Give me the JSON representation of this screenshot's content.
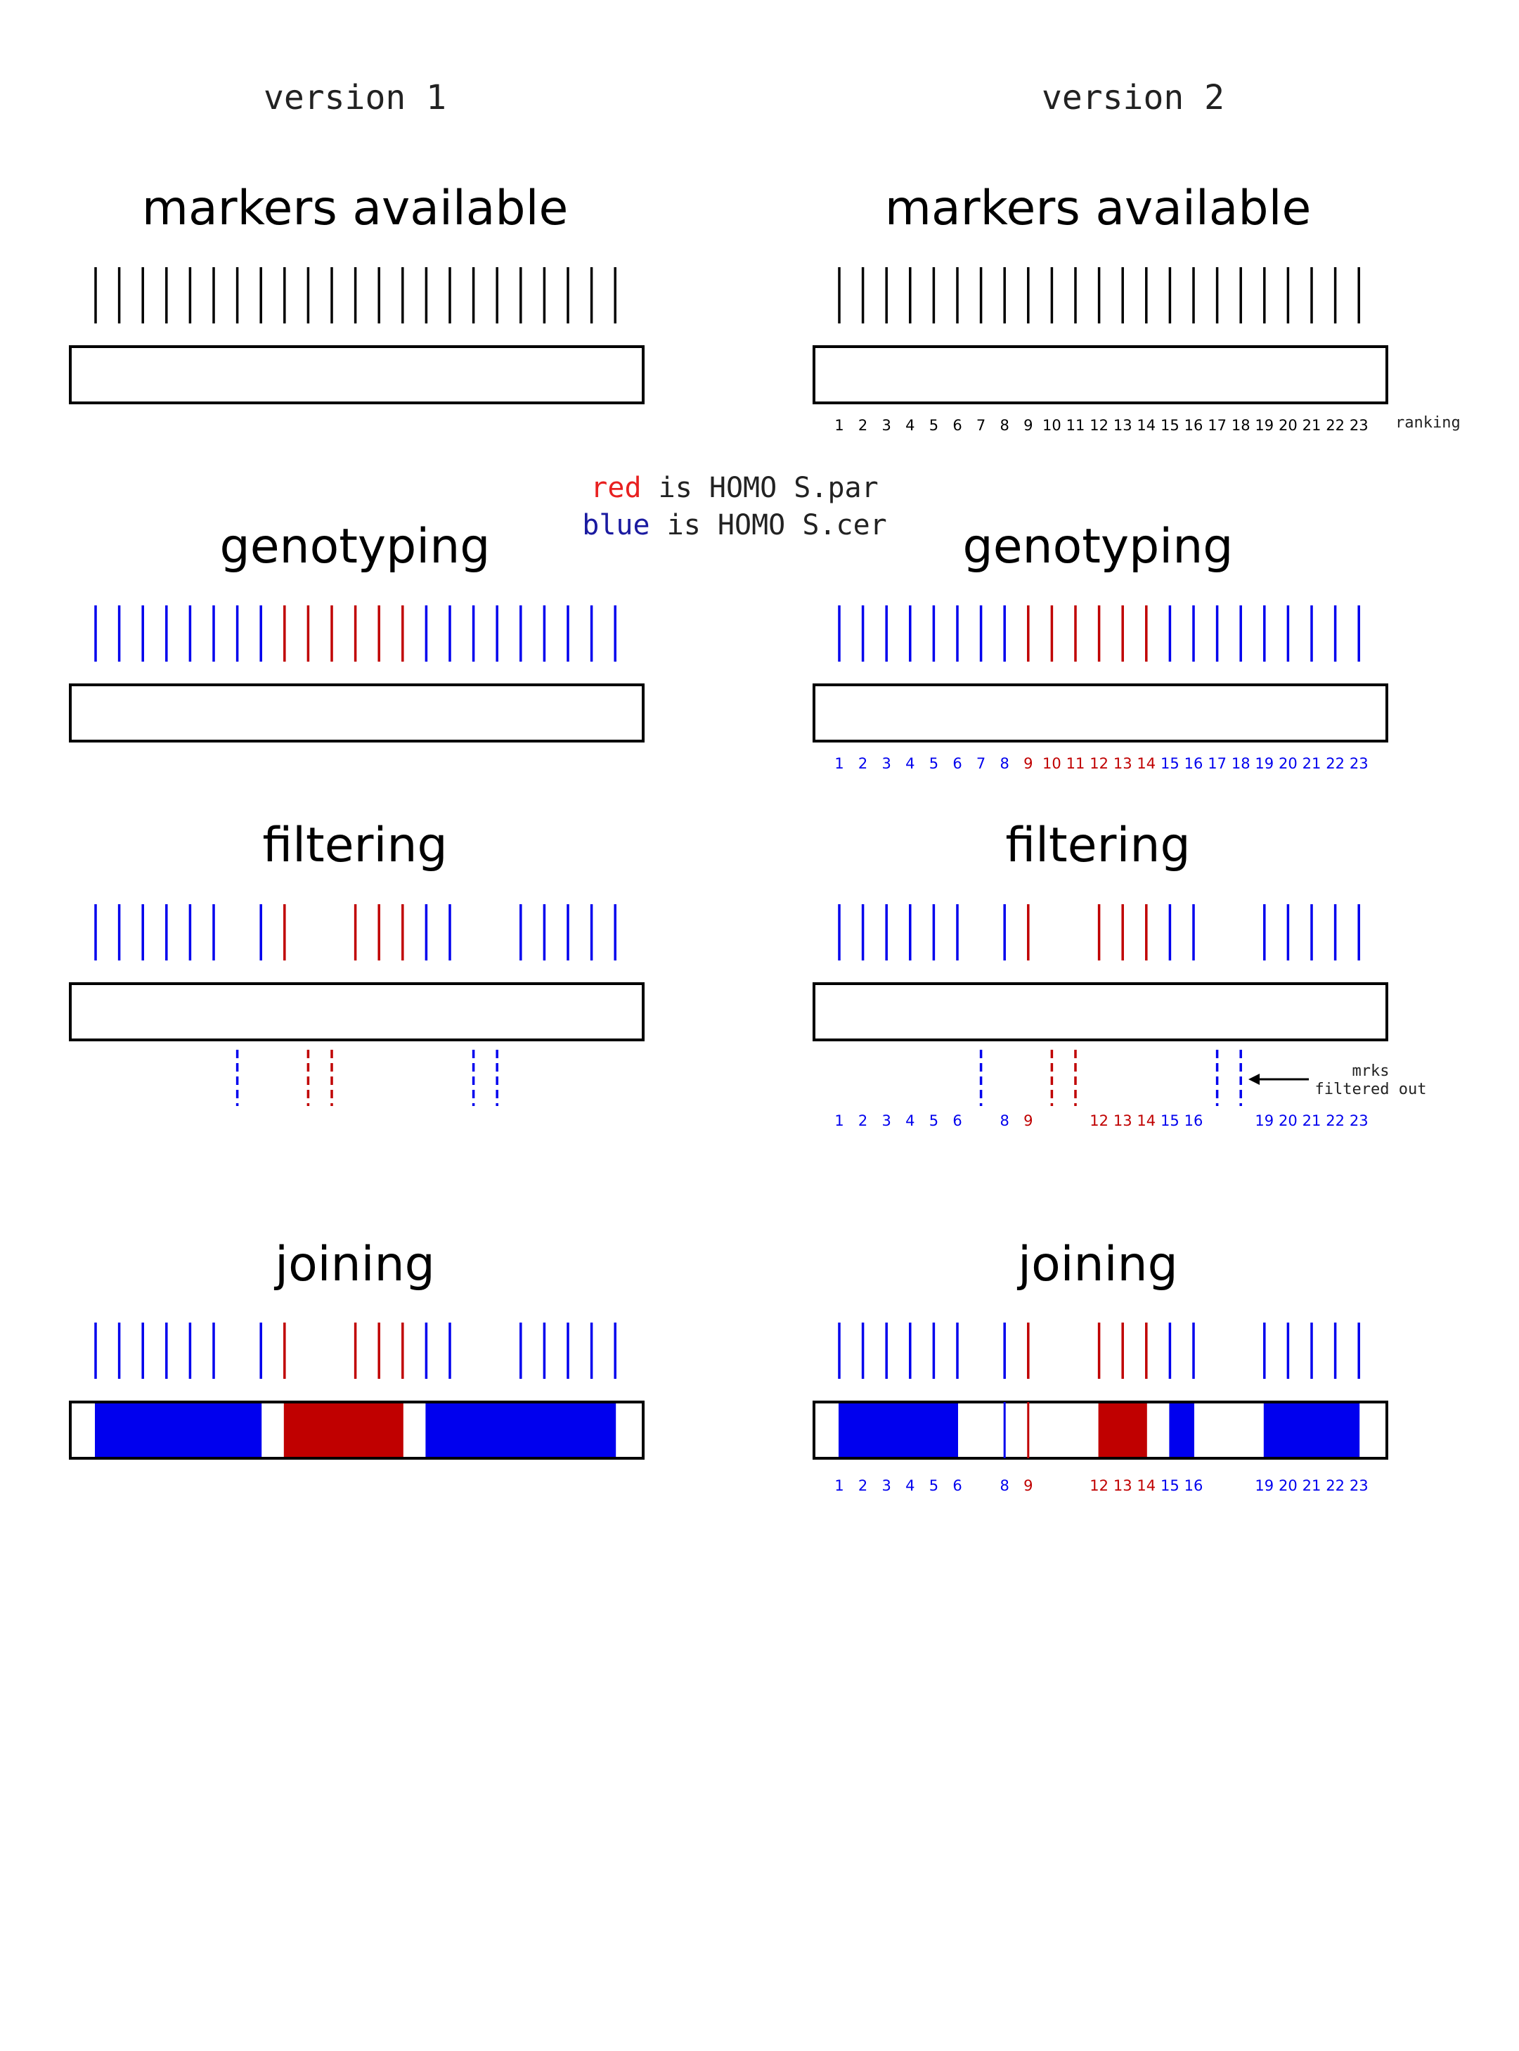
{
  "columns": [
    {
      "title": "version 1"
    },
    {
      "title": "version 2"
    }
  ],
  "legend": {
    "line1": {
      "color_word": "red",
      "rest": " is HOMO S.par"
    },
    "line2": {
      "color_word": "blue",
      "rest": " is HOMO S.cer"
    }
  },
  "stages": [
    {
      "id": "markers",
      "title": "markers available"
    },
    {
      "id": "genotyping",
      "title": "genotyping"
    },
    {
      "id": "filtering",
      "title": "filtering"
    },
    {
      "id": "joining",
      "title": "joining"
    }
  ],
  "markers": {
    "count": 23,
    "ranking": [
      "1",
      "2",
      "3",
      "4",
      "5",
      "6",
      "7",
      "8",
      "9",
      "10",
      "11",
      "12",
      "13",
      "14",
      "15",
      "16",
      "17",
      "18",
      "19",
      "20",
      "21",
      "22",
      "23"
    ],
    "genotype": [
      "b",
      "b",
      "b",
      "b",
      "b",
      "b",
      "b",
      "b",
      "r",
      "r",
      "r",
      "r",
      "r",
      "r",
      "b",
      "b",
      "b",
      "b",
      "b",
      "b",
      "b",
      "b",
      "b"
    ],
    "filtered_out": [
      7,
      10,
      11,
      17,
      18
    ]
  },
  "labels": {
    "ranking": "ranking",
    "filtered_note_line1": "mrks",
    "filtered_note_line2": "filtered out"
  },
  "joined_segments": {
    "version1": [
      {
        "from": 1,
        "to": 8,
        "color": "b"
      },
      {
        "from": 9,
        "to": 14,
        "color": "r"
      },
      {
        "from": 15,
        "to": 23,
        "color": "b"
      }
    ],
    "version2": [
      {
        "from": 1,
        "to": 6,
        "color": "b"
      },
      {
        "from": 12,
        "to": 14,
        "color": "r"
      },
      {
        "from": 15,
        "to": 16,
        "color": "b"
      },
      {
        "from": 19,
        "to": 23,
        "color": "b"
      }
    ]
  },
  "colors": {
    "r": "#c00000",
    "b": "#0000ee",
    "black": "#000000",
    "legend_red": "#e82020",
    "legend_blue": "#1a1aa0",
    "text": "#222222"
  }
}
